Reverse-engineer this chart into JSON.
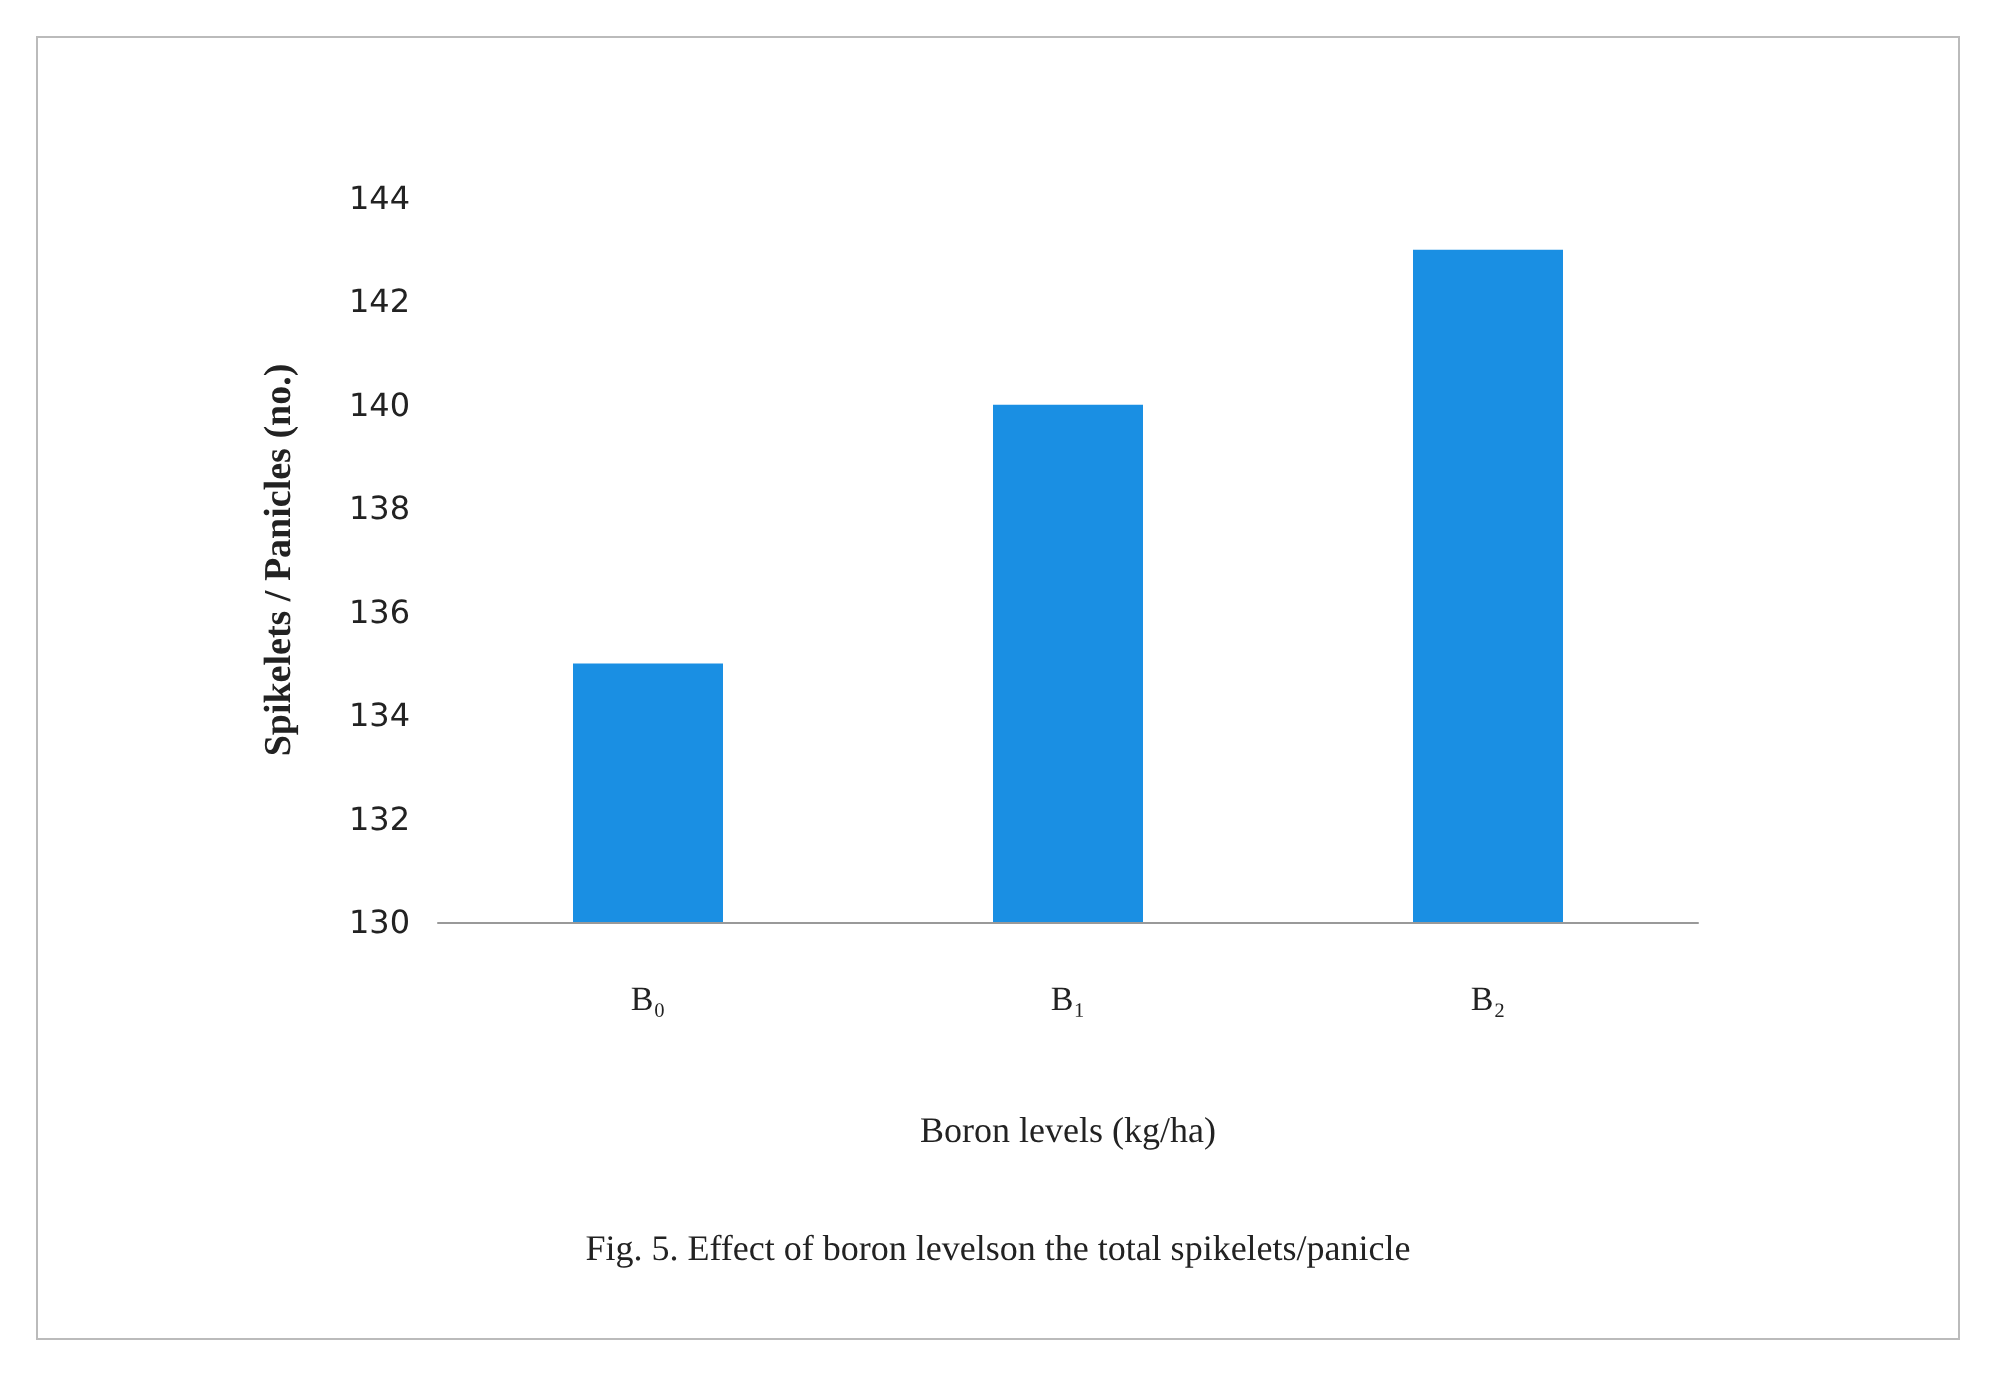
{
  "chart_data": {
    "type": "bar",
    "xlabel": "Boron levels (kg/ha)",
    "ylabel": "Spikelets / Panicles (no.)",
    "categories": [
      "B₀",
      "B₁",
      "B₂"
    ],
    "values": [
      135,
      140,
      143
    ],
    "color": "#1a8fe3",
    "ylim": [
      130,
      144
    ],
    "yticks": [
      130,
      132,
      134,
      136,
      138,
      140,
      142,
      144
    ],
    "grid": false,
    "annotations": [
      "Fig. 5. Effect of boron levelson the total spikelets/panicle"
    ]
  }
}
